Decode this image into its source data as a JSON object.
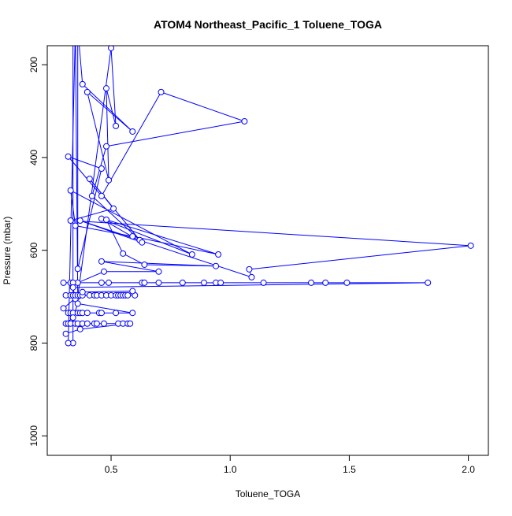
{
  "chart_data": {
    "type": "line",
    "title": "ATOM4 Northeast_Pacific_1 Toluene_TOGA",
    "xlabel": "Toluene_TOGA",
    "ylabel": "Pressure (mbar)",
    "xlim": [
      0.232,
      2.084
    ],
    "ylim": [
      1042,
      159
    ],
    "y_reversed": true,
    "grid": false,
    "markers": "open-circle",
    "x_ticks": [
      0.5,
      1.0,
      1.5,
      2.0
    ],
    "x_tick_labels": [
      "0.5",
      "1.0",
      "1.5",
      "2.0"
    ],
    "y_ticks": [
      200,
      400,
      600,
      800,
      1000
    ],
    "y_tick_labels": [
      "200",
      "400",
      "600",
      "800",
      "1000"
    ],
    "series_color": "#0000ff",
    "points": [
      [
        0.34,
        120
      ],
      [
        0.34,
        800
      ],
      [
        0.32,
        800
      ],
      [
        0.35,
        120
      ],
      [
        0.36,
        700
      ],
      [
        0.5,
        164
      ],
      [
        0.52,
        332
      ],
      [
        0.48,
        251
      ],
      [
        0.49,
        449
      ],
      [
        0.4,
        259
      ],
      [
        0.59,
        344
      ],
      [
        0.38,
        242
      ],
      [
        0.36,
        120
      ],
      [
        0.36,
        640
      ],
      [
        0.46,
        424
      ],
      [
        0.32,
        398
      ],
      [
        0.46,
        483
      ],
      [
        0.71,
        259
      ],
      [
        1.06,
        322
      ],
      [
        0.48,
        376
      ],
      [
        0.42,
        483
      ],
      [
        0.62,
        578
      ],
      [
        0.41,
        446
      ],
      [
        0.51,
        510
      ],
      [
        0.33,
        536
      ],
      [
        2.01,
        590
      ],
      [
        1.08,
        641
      ],
      [
        1.09,
        658
      ],
      [
        0.37,
        536
      ],
      [
        0.63,
        583
      ],
      [
        0.46,
        532
      ],
      [
        0.84,
        609
      ],
      [
        0.33,
        471
      ],
      [
        0.35,
        547
      ],
      [
        0.59,
        570
      ],
      [
        0.95,
        609
      ],
      [
        0.48,
        534
      ],
      [
        0.55,
        607
      ],
      [
        0.64,
        631
      ],
      [
        0.94,
        634
      ],
      [
        0.46,
        624
      ],
      [
        0.7,
        646
      ],
      [
        0.47,
        646
      ],
      [
        0.36,
        670
      ],
      [
        0.3,
        670
      ],
      [
        0.33,
        670
      ],
      [
        0.34,
        670
      ],
      [
        0.46,
        670
      ],
      [
        0.49,
        670
      ],
      [
        0.63,
        670
      ],
      [
        0.64,
        670
      ],
      [
        0.7,
        670
      ],
      [
        0.8,
        670
      ],
      [
        0.89,
        670
      ],
      [
        0.94,
        670
      ],
      [
        0.96,
        670
      ],
      [
        1.14,
        670
      ],
      [
        1.34,
        670
      ],
      [
        1.4,
        670
      ],
      [
        1.49,
        670
      ],
      [
        1.83,
        670
      ],
      [
        0.34,
        680
      ],
      [
        0.35,
        705
      ],
      [
        0.31,
        697
      ],
      [
        0.33,
        697
      ],
      [
        0.34,
        697
      ],
      [
        0.35,
        697
      ],
      [
        0.36,
        697
      ],
      [
        0.37,
        697
      ],
      [
        0.38,
        697
      ],
      [
        0.41,
        697
      ],
      [
        0.43,
        697
      ],
      [
        0.44,
        697
      ],
      [
        0.46,
        697
      ],
      [
        0.48,
        697
      ],
      [
        0.5,
        697
      ],
      [
        0.52,
        697
      ],
      [
        0.53,
        697
      ],
      [
        0.54,
        697
      ],
      [
        0.55,
        697
      ],
      [
        0.56,
        697
      ],
      [
        0.57,
        697
      ],
      [
        0.6,
        697
      ],
      [
        0.59,
        688
      ],
      [
        0.38,
        690
      ],
      [
        0.3,
        725
      ],
      [
        0.32,
        735
      ],
      [
        0.33,
        735
      ],
      [
        0.34,
        735
      ],
      [
        0.36,
        735
      ],
      [
        0.37,
        735
      ],
      [
        0.38,
        735
      ],
      [
        0.4,
        735
      ],
      [
        0.45,
        735
      ],
      [
        0.46,
        735
      ],
      [
        0.52,
        735
      ],
      [
        0.59,
        735
      ],
      [
        0.36,
        715
      ],
      [
        0.34,
        745
      ],
      [
        0.31,
        758
      ],
      [
        0.32,
        758
      ],
      [
        0.33,
        758
      ],
      [
        0.35,
        758
      ],
      [
        0.36,
        758
      ],
      [
        0.38,
        758
      ],
      [
        0.4,
        758
      ],
      [
        0.43,
        758
      ],
      [
        0.44,
        758
      ],
      [
        0.47,
        758
      ],
      [
        0.53,
        758
      ],
      [
        0.55,
        758
      ],
      [
        0.57,
        758
      ],
      [
        0.58,
        758
      ],
      [
        0.37,
        770
      ],
      [
        0.31,
        780
      ]
    ]
  }
}
